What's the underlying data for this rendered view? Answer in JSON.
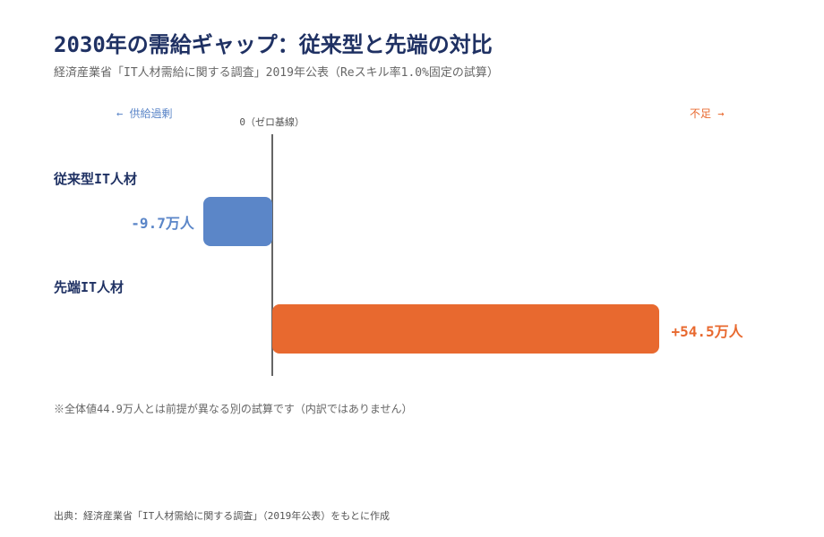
{
  "header": {
    "title": "2030年の需給ギャップ：従来型と先端の対比",
    "subtitle": "経済産業省「IT人材需給に関する調査」2019年公表（Reスキル率1.0%固定の試算）"
  },
  "legend": {
    "left_direction": "← 供給過剰",
    "right_direction": "不足 →",
    "baseline_label": "0（ゼロ基線）"
  },
  "chart_data": {
    "type": "bar",
    "orientation": "horizontal",
    "categories": [
      "従来型IT人材",
      "先端IT人材"
    ],
    "values": [
      -9.7,
      54.5
    ],
    "value_labels": [
      "-9.7万人",
      "+54.5万人"
    ],
    "unit": "万人",
    "xlim": [
      -19.4,
      61.0
    ],
    "colors": [
      "#5b86c8",
      "#e8692f"
    ],
    "grid": false
  },
  "footer": {
    "note": "※全体値44.9万人とは前提が異なる別の試算です（内訳ではありません）",
    "source": "出典：経済産業省「IT人材需給に関する調査」（2019年公表）をもとに作成"
  }
}
